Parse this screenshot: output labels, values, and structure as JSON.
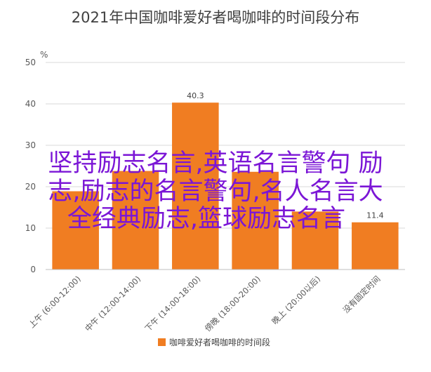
{
  "chart_data": {
    "type": "bar",
    "title": "2021年中国咖啡爱好者喝咖啡的时间段分布",
    "y_unit": "%",
    "categories": [
      "上午 (6:00-12:00)",
      "中午 (12:00-14:00)",
      "下午 (14:00-18:00)",
      "傍晚 (18:00-20:00)",
      "晚上 (20:00以后)",
      "没有固定时间"
    ],
    "series": [
      {
        "name": "咖啡爱好者喝咖啡的时间段",
        "values": [
          18.9,
          23.8,
          40.3,
          23.6,
          14.0,
          11.4
        ],
        "color": "#f07d22"
      }
    ],
    "data_labels": [
      "",
      "",
      "40.3",
      "",
      "",
      "11.4"
    ],
    "yticks": [
      "0",
      "10",
      "20",
      "30",
      "40",
      "50"
    ],
    "ylim": [
      0,
      50
    ],
    "grid": true,
    "legend_position": "bottom"
  },
  "overlay_text": {
    "line1": "坚持励志名言,英语名言警句 励",
    "line2": "志,励志的名言警句,名人名言大",
    "line3": "全经典励志,篮球励志名言"
  }
}
